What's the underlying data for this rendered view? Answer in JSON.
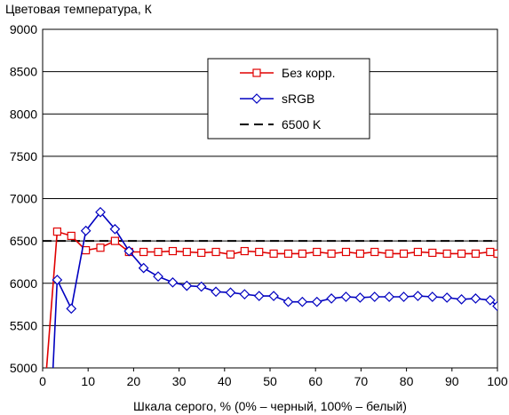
{
  "chart_data": {
    "type": "line",
    "title": "",
    "ylabel": "Цветовая температура, К",
    "xlabel": "Шкала серого, % (0% – черный, 100% – белый)",
    "xlim": [
      0,
      100
    ],
    "ylim": [
      5000,
      9000
    ],
    "xticks": [
      0,
      10,
      20,
      30,
      40,
      50,
      60,
      70,
      80,
      90,
      100
    ],
    "yticks": [
      5000,
      5500,
      6000,
      6500,
      7000,
      7500,
      8000,
      8500,
      9000
    ],
    "grid": "horizontal",
    "legend_position": "top-right",
    "series": [
      {
        "name": "Без корр.",
        "color": "#e00000",
        "marker": "square",
        "x": [
          0.8,
          3.2,
          6.3,
          9.5,
          12.7,
          15.9,
          19,
          22.2,
          25.4,
          28.6,
          31.7,
          34.9,
          38.1,
          41.3,
          44.4,
          47.6,
          50.8,
          54,
          57.1,
          60.3,
          63.5,
          66.7,
          69.8,
          73,
          76.2,
          79.4,
          82.5,
          85.7,
          88.9,
          92.1,
          95.2,
          98.4,
          100
        ],
        "y": [
          4950,
          6610,
          6560,
          6390,
          6420,
          6500,
          6370,
          6370,
          6370,
          6380,
          6370,
          6360,
          6370,
          6340,
          6380,
          6370,
          6350,
          6350,
          6350,
          6370,
          6350,
          6370,
          6350,
          6370,
          6350,
          6350,
          6370,
          6360,
          6350,
          6350,
          6350,
          6370,
          6350
        ]
      },
      {
        "name": "sRGB",
        "color": "#0000c0",
        "marker": "diamond",
        "x": [
          2.2,
          3.2,
          6.3,
          9.5,
          12.7,
          15.9,
          19,
          22.2,
          25.4,
          28.6,
          31.7,
          34.9,
          38.1,
          41.3,
          44.4,
          47.6,
          50.8,
          54,
          57.1,
          60.3,
          63.5,
          66.7,
          69.8,
          73,
          76.2,
          79.4,
          82.5,
          85.7,
          88.9,
          92.1,
          95.2,
          98.4,
          100
        ],
        "y": [
          4900,
          6040,
          5700,
          6620,
          6840,
          6640,
          6380,
          6180,
          6080,
          6010,
          5970,
          5960,
          5900,
          5890,
          5870,
          5850,
          5850,
          5780,
          5780,
          5780,
          5820,
          5840,
          5830,
          5840,
          5840,
          5840,
          5850,
          5840,
          5830,
          5810,
          5820,
          5800,
          5730
        ]
      },
      {
        "name": "6500 K",
        "color": "#000000",
        "dashed": true,
        "x": [
          0,
          100
        ],
        "y": [
          6500,
          6500
        ]
      }
    ]
  }
}
